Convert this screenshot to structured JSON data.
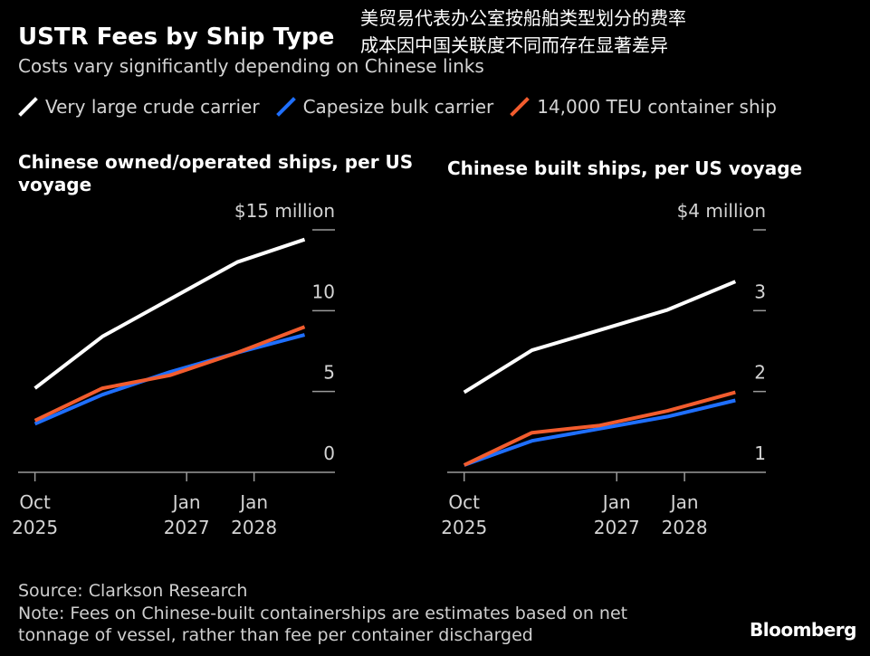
{
  "header": {
    "title": "USTR Fees by Ship Type",
    "subtitle": "Costs vary significantly depending on Chinese links",
    "overlay_line1": "美贸易代表办公室按船舶类型划分的费率",
    "overlay_line2": "成本因中国关联度不同而存在显著差异"
  },
  "legend": [
    {
      "label": "Very large crude carrier",
      "color": "#ffffff"
    },
    {
      "label": "Capesize bulk carrier",
      "color": "#1f6fff"
    },
    {
      "label": "14,000 TEU container ship",
      "color": "#f25c2e"
    }
  ],
  "chart_data": [
    {
      "type": "line",
      "title": "Chinese owned/operated ships, per US voyage",
      "unit_label": "$15 million",
      "x": [
        0,
        1,
        2,
        3,
        4
      ],
      "xticks": [
        {
          "at": 0,
          "line1": "Oct",
          "line2": "2025"
        },
        {
          "at": 2.25,
          "line1": "Jan",
          "line2": "2027"
        },
        {
          "at": 3.25,
          "line1": "Jan",
          "line2": "2028"
        }
      ],
      "yticks": [
        {
          "value": 0,
          "label": "0"
        },
        {
          "value": 5,
          "label": "5"
        },
        {
          "value": 10,
          "label": "10"
        },
        {
          "value": 15,
          "label": "$15 million"
        }
      ],
      "ylim": [
        0,
        15
      ],
      "xlim": [
        -0.25,
        4.45
      ],
      "series": [
        {
          "name": "Very large crude carrier",
          "color": "#ffffff",
          "values": [
            5.2,
            8.4,
            10.7,
            13.0,
            14.4
          ]
        },
        {
          "name": "Capesize bulk carrier",
          "color": "#1f6fff",
          "values": [
            3.0,
            4.8,
            6.2,
            7.4,
            8.5
          ]
        },
        {
          "name": "14,000 TEU container ship",
          "color": "#f25c2e",
          "values": [
            3.2,
            5.2,
            6.0,
            7.4,
            9.0
          ]
        }
      ]
    },
    {
      "type": "line",
      "title": "Chinese built ships, per US voyage",
      "unit_label": "$4 million",
      "x": [
        0,
        1,
        2,
        3,
        4
      ],
      "xticks": [
        {
          "at": 0,
          "line1": "Oct",
          "line2": "2025"
        },
        {
          "at": 2.25,
          "line1": "Jan",
          "line2": "2027"
        },
        {
          "at": 3.25,
          "line1": "Jan",
          "line2": "2028"
        }
      ],
      "yticks": [
        {
          "value": 1,
          "label": "1"
        },
        {
          "value": 2,
          "label": "2"
        },
        {
          "value": 3,
          "label": "3"
        },
        {
          "value": 4,
          "label": "$4 million"
        }
      ],
      "ylim": [
        1,
        4
      ],
      "xlim": [
        -0.25,
        4.45
      ],
      "series": [
        {
          "name": "Very large crude carrier",
          "color": "#ffffff",
          "values": [
            1.99,
            2.51,
            2.76,
            3.01,
            3.36
          ]
        },
        {
          "name": "Capesize bulk carrier",
          "color": "#1f6fff",
          "values": [
            1.09,
            1.39,
            1.54,
            1.69,
            1.89
          ]
        },
        {
          "name": "14,000 TEU container ship",
          "color": "#f25c2e",
          "values": [
            1.09,
            1.49,
            1.58,
            1.76,
            1.99
          ]
        }
      ]
    }
  ],
  "footer": {
    "source": "Source: Clarkson Research",
    "note": "Note: Fees on Chinese-built containerships are estimates based on net tonnage of vessel, rather than fee per container discharged",
    "brand": "Bloomberg"
  }
}
